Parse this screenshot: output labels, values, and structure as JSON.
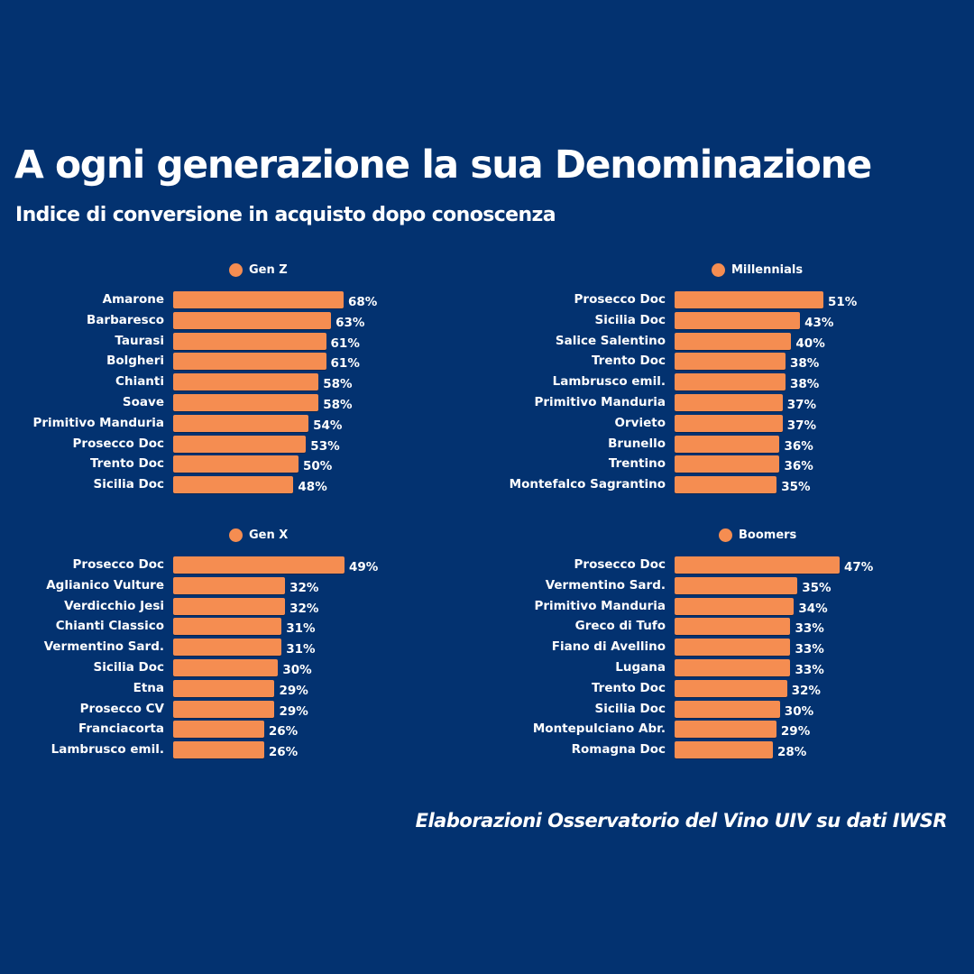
{
  "header": {
    "title": "A ogni generazione la sua Denominazione",
    "subtitle": "Indice di conversione in acquisto dopo conoscenza"
  },
  "footer": {
    "source": "Elaborazioni Osservatorio del Vino UIV su dati IWSR"
  },
  "colors": {
    "background": "#033270",
    "bar": "#f58d51",
    "text": "#ffffff"
  },
  "chart_data": [
    {
      "type": "bar",
      "orientation": "horizontal",
      "title": "Gen Z",
      "legend": "Gen Z",
      "unit": "%",
      "categories": [
        "Amarone",
        "Barbaresco",
        "Taurasi",
        "Bolgheri",
        "Chianti",
        "Soave",
        "Primitivo Manduria",
        "Prosecco Doc",
        "Trento Doc",
        "Sicilia Doc"
      ],
      "values": [
        68,
        63,
        61,
        61,
        58,
        58,
        54,
        53,
        50,
        48
      ],
      "labels": [
        "68%",
        "63%",
        "61%",
        "61%",
        "58%",
        "58%",
        "54%",
        "53%",
        "50%",
        "48%"
      ]
    },
    {
      "type": "bar",
      "orientation": "horizontal",
      "title": "Millennials",
      "legend": "Millennials",
      "unit": "%",
      "categories": [
        "Prosecco Doc",
        "Sicilia Doc",
        "Salice Salentino",
        "Trento Doc",
        "Lambrusco emil.",
        "Primitivo Manduria",
        "Orvieto",
        "Brunello",
        "Trentino",
        "Montefalco Sagrantino"
      ],
      "values": [
        51,
        43,
        40,
        38,
        38,
        37,
        37,
        36,
        36,
        35
      ],
      "labels": [
        "51%",
        "43%",
        "40%",
        "38%",
        "38%",
        "37%",
        "37%",
        "36%",
        "36%",
        "35%"
      ]
    },
    {
      "type": "bar",
      "orientation": "horizontal",
      "title": "Gen X",
      "legend": "Gen X",
      "unit": "%",
      "categories": [
        "Prosecco Doc",
        "Aglianico Vulture",
        "Verdicchio Jesi",
        "Chianti Classico",
        "Vermentino Sard.",
        "Sicilia Doc",
        "Etna",
        "Prosecco CV",
        "Franciacorta",
        "Lambrusco emil."
      ],
      "values": [
        49,
        32,
        32,
        31,
        31,
        30,
        29,
        29,
        26,
        26
      ],
      "labels": [
        "49%",
        "32%",
        "32%",
        "31%",
        "31%",
        "30%",
        "29%",
        "29%",
        "26%",
        "26%"
      ]
    },
    {
      "type": "bar",
      "orientation": "horizontal",
      "title": "Boomers",
      "legend": "Boomers",
      "unit": "%",
      "categories": [
        "Prosecco Doc",
        "Vermentino Sard.",
        "Primitivo Manduria",
        "Greco di Tufo",
        "Fiano di Avellino",
        "Lugana",
        "Trento Doc",
        "Sicilia Doc",
        "Montepulciano Abr.",
        "Romagna Doc"
      ],
      "values": [
        47,
        35,
        34,
        33,
        33,
        33,
        32,
        30,
        29,
        28
      ],
      "labels": [
        "47%",
        "35%",
        "34%",
        "33%",
        "33%",
        "33%",
        "32%",
        "30%",
        "29%",
        "28%"
      ]
    }
  ]
}
